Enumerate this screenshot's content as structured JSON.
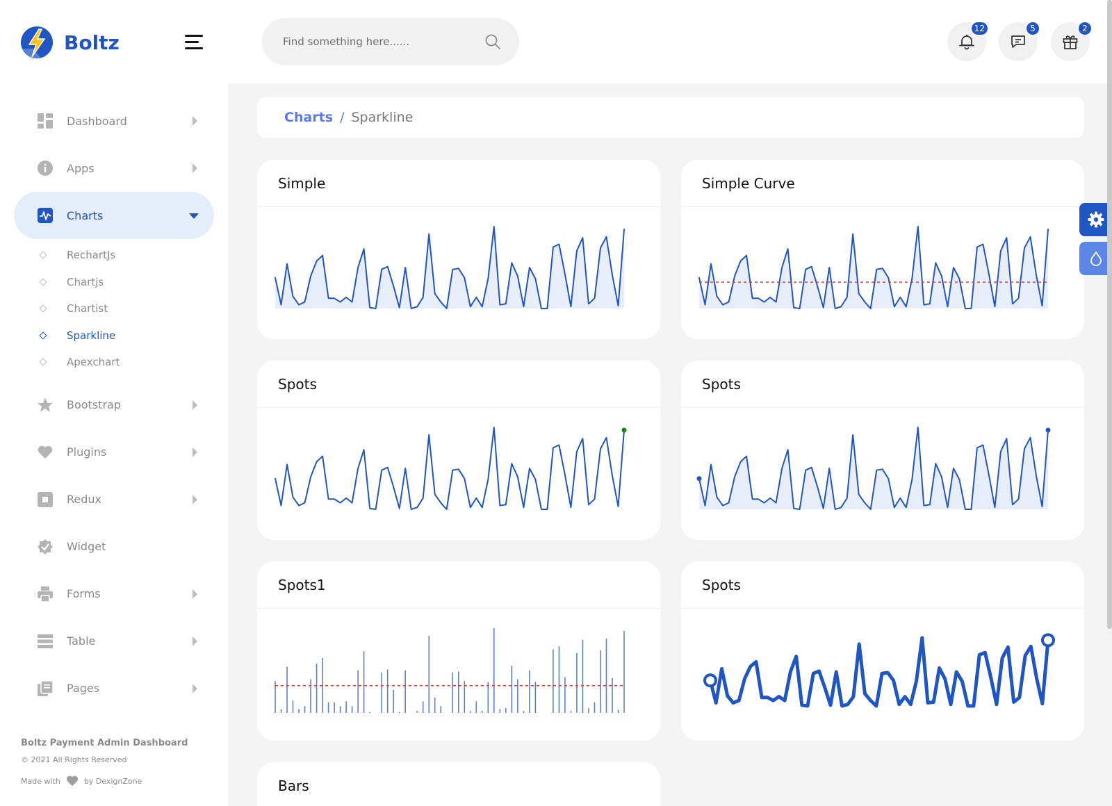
{
  "brand": {
    "name": "Boltz"
  },
  "sidebar": {
    "items": [
      {
        "label": "Dashboard",
        "icon": "dashboard-icon",
        "has_arrow": true
      },
      {
        "label": "Apps",
        "icon": "info-icon",
        "has_arrow": true
      },
      {
        "label": "Charts",
        "icon": "chart-icon",
        "has_arrow": true,
        "active": true
      },
      {
        "label": "Bootstrap",
        "icon": "star-icon",
        "has_arrow": true
      },
      {
        "label": "Plugins",
        "icon": "heart-icon",
        "has_arrow": true
      },
      {
        "label": "Redux",
        "icon": "square-icon",
        "has_arrow": true
      },
      {
        "label": "Widget",
        "icon": "badge-check-icon",
        "has_arrow": false
      },
      {
        "label": "Forms",
        "icon": "printer-icon",
        "has_arrow": true
      },
      {
        "label": "Table",
        "icon": "table-icon",
        "has_arrow": true
      },
      {
        "label": "Pages",
        "icon": "pages-icon",
        "has_arrow": true
      }
    ],
    "submenu": [
      {
        "label": "RechartJs"
      },
      {
        "label": "Chartjs"
      },
      {
        "label": "Chartist"
      },
      {
        "label": "Sparkline",
        "active": true
      },
      {
        "label": "Apexchart"
      }
    ],
    "footer": {
      "title": "Boltz Payment Admin Dashboard",
      "copyright": "© 2021 All Rights Reserved",
      "made_with": "Made with",
      "by": "by DexignZone"
    }
  },
  "header": {
    "search": {
      "placeholder": "Find something here......"
    },
    "notifications": {
      "icon": "bell-icon",
      "count": "12"
    },
    "messages": {
      "icon": "chat-icon",
      "count": "5"
    },
    "gifts": {
      "icon": "gift-icon",
      "count": "2"
    }
  },
  "breadcrumb": {
    "parent": "Charts",
    "separator": "/",
    "current": "Sparkline"
  },
  "colors": {
    "accent": "#1f56c4",
    "accent_light": "#e5edfa",
    "fill": "#e8eef9",
    "red_line": "#e53935",
    "green_spot": "#138a13"
  },
  "cards": [
    {
      "title": "Simple"
    },
    {
      "title": "Simple Curve"
    },
    {
      "title": "Spots"
    },
    {
      "title": "Spots"
    },
    {
      "title": "Spots1"
    },
    {
      "title": "Spots"
    },
    {
      "title": "Bars"
    }
  ],
  "chart_data": [
    {
      "type": "area",
      "values": [
        34,
        5,
        49,
        14,
        5,
        8,
        36,
        52,
        58,
        12,
        12,
        8,
        13,
        8,
        45,
        65,
        2,
        1,
        43,
        46,
        25,
        2,
        45,
        1,
        3,
        13,
        81,
        17,
        8,
        1,
        43,
        44,
        34,
        3,
        13,
        3,
        33,
        89,
        5,
        6,
        50,
        36,
        3,
        45,
        33,
        1,
        1,
        67,
        70,
        38,
        3,
        63,
        77,
        6,
        12,
        66,
        78,
        37,
        4,
        86
      ]
    }
  ]
}
